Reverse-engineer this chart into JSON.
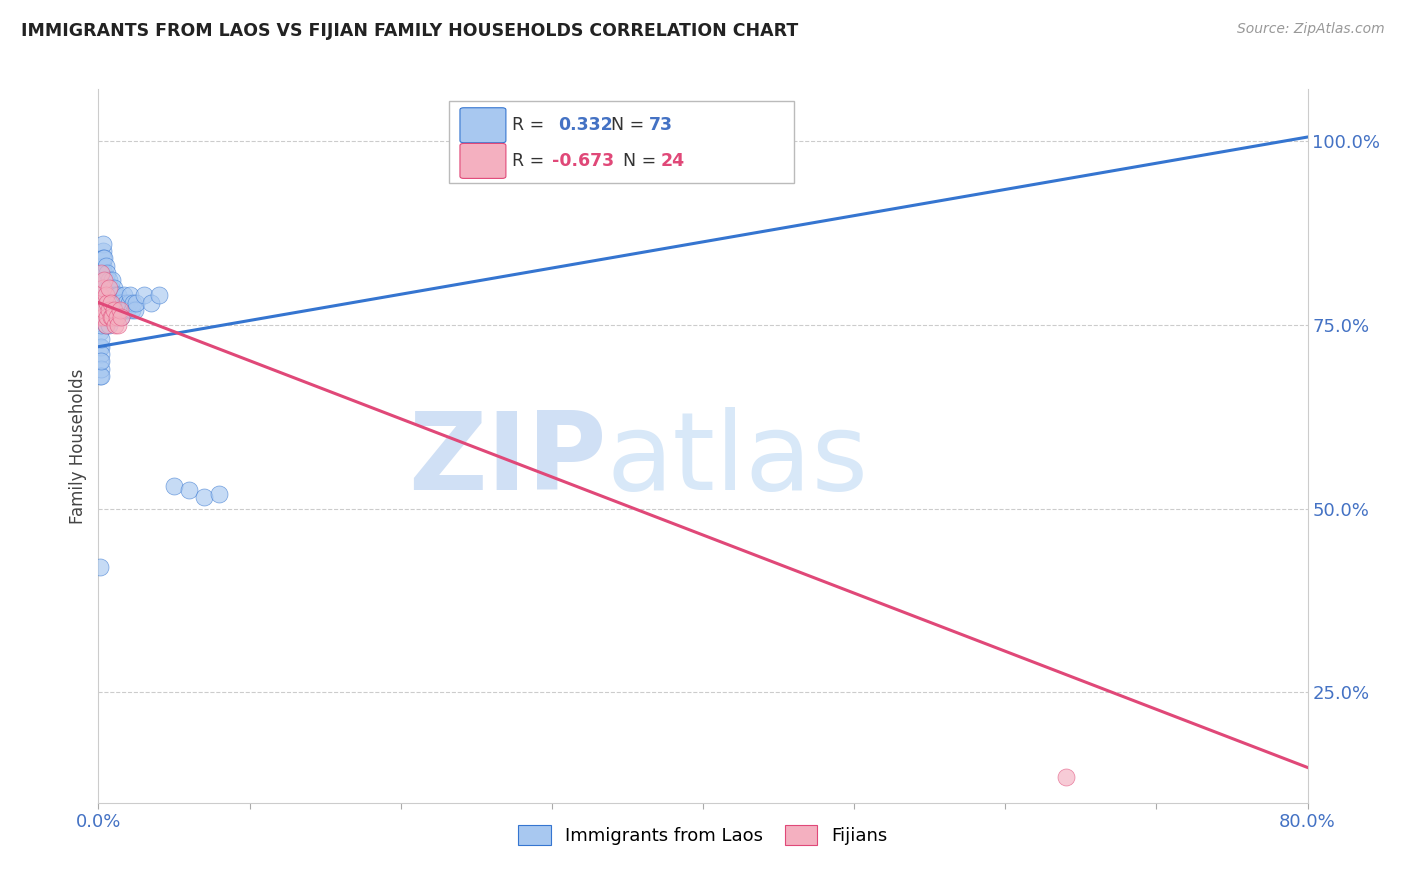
{
  "title": "IMMIGRANTS FROM LAOS VS FIJIAN FAMILY HOUSEHOLDS CORRELATION CHART",
  "source": "Source: ZipAtlas.com",
  "ylabel": "Family Households",
  "xlim": [
    0.0,
    0.8
  ],
  "ylim": [
    0.1,
    1.07
  ],
  "blue_R": "0.332",
  "blue_N": "73",
  "pink_R": "-0.673",
  "pink_N": "24",
  "blue_color": "#a8c8f0",
  "pink_color": "#f4b0c0",
  "blue_line_color": "#3575d0",
  "pink_line_color": "#e04878",
  "legend_label_blue": "Immigrants from Laos",
  "legend_label_pink": "Fijians",
  "blue_line_x": [
    0.0,
    0.8
  ],
  "blue_line_y": [
    0.72,
    1.005
  ],
  "pink_line_x": [
    0.0,
    0.8
  ],
  "pink_line_y": [
    0.78,
    0.148
  ],
  "blue_x": [
    0.001,
    0.001,
    0.001,
    0.001,
    0.001,
    0.002,
    0.002,
    0.002,
    0.002,
    0.002,
    0.002,
    0.002,
    0.003,
    0.003,
    0.003,
    0.003,
    0.003,
    0.003,
    0.003,
    0.004,
    0.004,
    0.004,
    0.004,
    0.004,
    0.005,
    0.005,
    0.005,
    0.005,
    0.005,
    0.006,
    0.006,
    0.006,
    0.006,
    0.007,
    0.007,
    0.007,
    0.007,
    0.008,
    0.008,
    0.008,
    0.009,
    0.009,
    0.009,
    0.01,
    0.01,
    0.01,
    0.011,
    0.011,
    0.012,
    0.012,
    0.013,
    0.013,
    0.014,
    0.015,
    0.015,
    0.016,
    0.017,
    0.018,
    0.019,
    0.02,
    0.021,
    0.022,
    0.023,
    0.024,
    0.025,
    0.03,
    0.035,
    0.04,
    0.05,
    0.06,
    0.07,
    0.08,
    0.001
  ],
  "blue_y": [
    0.72,
    0.7,
    0.68,
    0.76,
    0.74,
    0.72,
    0.71,
    0.73,
    0.69,
    0.75,
    0.68,
    0.7,
    0.83,
    0.85,
    0.82,
    0.8,
    0.78,
    0.86,
    0.84,
    0.78,
    0.8,
    0.76,
    0.82,
    0.84,
    0.79,
    0.81,
    0.77,
    0.83,
    0.75,
    0.78,
    0.8,
    0.76,
    0.82,
    0.79,
    0.81,
    0.77,
    0.75,
    0.78,
    0.8,
    0.76,
    0.79,
    0.77,
    0.81,
    0.78,
    0.76,
    0.8,
    0.79,
    0.77,
    0.78,
    0.76,
    0.79,
    0.77,
    0.78,
    0.76,
    0.78,
    0.77,
    0.79,
    0.78,
    0.77,
    0.78,
    0.79,
    0.77,
    0.78,
    0.77,
    0.78,
    0.79,
    0.78,
    0.79,
    0.53,
    0.525,
    0.515,
    0.52,
    0.42
  ],
  "pink_x": [
    0.001,
    0.001,
    0.002,
    0.002,
    0.003,
    0.003,
    0.004,
    0.004,
    0.005,
    0.005,
    0.006,
    0.006,
    0.007,
    0.007,
    0.008,
    0.008,
    0.009,
    0.01,
    0.011,
    0.012,
    0.013,
    0.014,
    0.015,
    0.64
  ],
  "pink_y": [
    0.79,
    0.76,
    0.82,
    0.78,
    0.76,
    0.8,
    0.77,
    0.81,
    0.79,
    0.75,
    0.78,
    0.76,
    0.8,
    0.77,
    0.76,
    0.78,
    0.76,
    0.77,
    0.75,
    0.76,
    0.75,
    0.77,
    0.76,
    0.135
  ]
}
